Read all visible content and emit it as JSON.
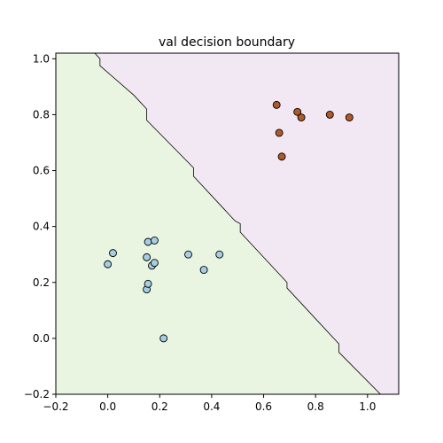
{
  "chart_data": {
    "type": "scatter",
    "title": "val decision boundary",
    "xlabel": "",
    "ylabel": "",
    "xlim": [
      -0.2,
      1.12
    ],
    "ylim": [
      -0.2,
      1.02
    ],
    "x_ticks": [
      -0.2,
      0.0,
      0.2,
      0.4,
      0.6,
      0.8,
      1.0
    ],
    "y_ticks": [
      -0.2,
      0.0,
      0.2,
      0.4,
      0.6,
      0.8,
      1.0
    ],
    "x_tick_labels": [
      "−0.2",
      "0.0",
      "0.2",
      "0.4",
      "0.6",
      "0.8",
      "1.0"
    ],
    "y_tick_labels": [
      "−0.2",
      "0.0",
      "0.2",
      "0.4",
      "0.6",
      "0.8",
      "1.0"
    ],
    "grid": false,
    "colors": {
      "region_class_0": "#e9f5e0",
      "region_class_1": "#f1e8f3",
      "point_class_0": "#a6cee3",
      "point_class_1": "#b15928",
      "boundary": "#000000"
    },
    "boundary_line": [
      [
        -0.05,
        1.02
      ],
      [
        -0.03,
        1.0
      ],
      [
        -0.03,
        0.975
      ],
      [
        0.1,
        0.87
      ],
      [
        0.15,
        0.82
      ],
      [
        0.15,
        0.78
      ],
      [
        0.33,
        0.61
      ],
      [
        0.33,
        0.58
      ],
      [
        0.49,
        0.42
      ],
      [
        0.51,
        0.41
      ],
      [
        0.51,
        0.38
      ],
      [
        0.69,
        0.2
      ],
      [
        0.69,
        0.18
      ],
      [
        0.89,
        -0.02
      ],
      [
        0.89,
        -0.05
      ],
      [
        1.05,
        -0.2
      ]
    ],
    "series": [
      {
        "class": 0,
        "x": [
          0.0,
          0.02,
          0.15,
          0.155,
          0.15,
          0.155,
          0.17,
          0.18,
          0.18,
          0.215,
          0.31,
          0.37,
          0.43
        ],
        "y": [
          0.265,
          0.305,
          0.29,
          0.345,
          0.175,
          0.195,
          0.26,
          0.27,
          0.35,
          0.0,
          0.3,
          0.245,
          0.3
        ]
      },
      {
        "class": 1,
        "x": [
          0.65,
          0.66,
          0.67,
          0.73,
          0.745,
          0.855,
          0.93
        ],
        "y": [
          0.835,
          0.735,
          0.65,
          0.81,
          0.79,
          0.8,
          0.79
        ]
      }
    ]
  }
}
